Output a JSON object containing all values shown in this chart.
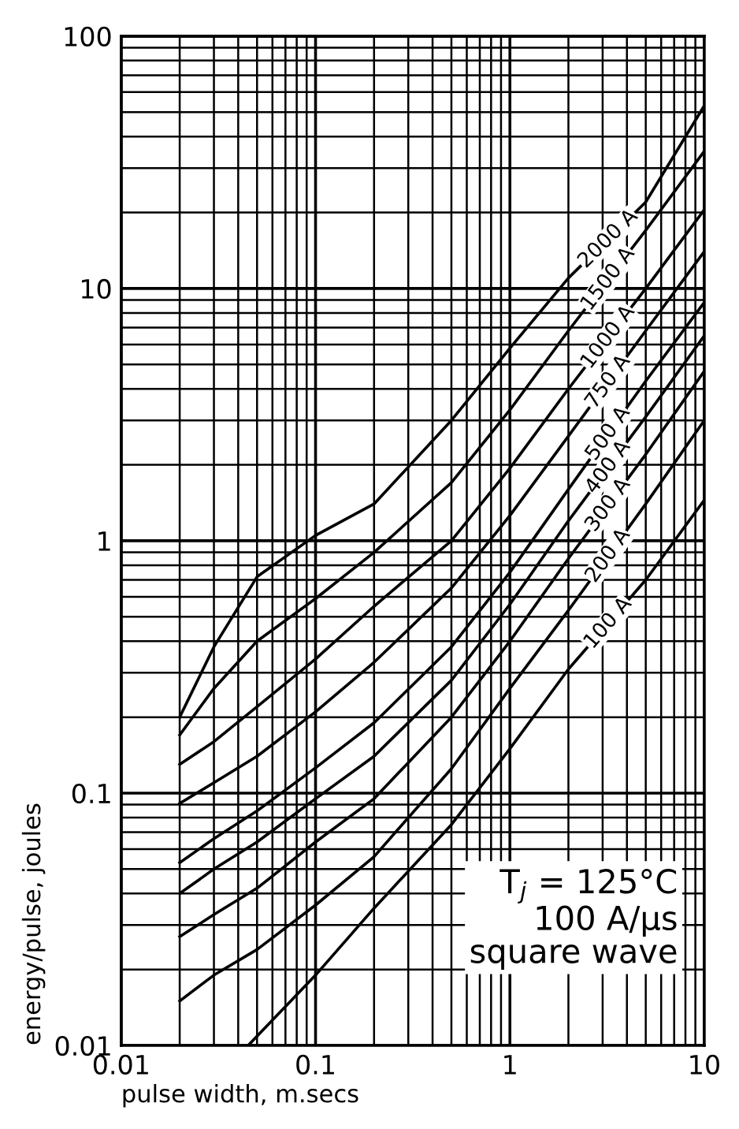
{
  "chart_data": {
    "type": "line",
    "xlabel": "pulse width, m.secs",
    "ylabel": "energy/pulse, joules",
    "log": "xy",
    "grid": true,
    "line_style": "solid",
    "marker": "none",
    "xlim": [
      0.01,
      10
    ],
    "ylim": [
      0.01,
      100
    ],
    "xticks": [
      0.01,
      0.1,
      1,
      10
    ],
    "yticks": [
      0.01,
      0.1,
      1,
      10,
      100
    ],
    "annotations": [
      "T$_{j}$ = 125°C\n100 A/µs\nsquare wave"
    ],
    "series": [
      {
        "name": "2000 A",
        "color": "#000000",
        "x": [
          0.02,
          0.03,
          0.05,
          0.1,
          0.2,
          0.5,
          1,
          2,
          5,
          10
        ],
        "values": [
          0.2,
          0.38,
          0.72,
          1.05,
          1.4,
          3.0,
          5.8,
          11,
          22,
          53
        ]
      },
      {
        "name": "1500 A",
        "color": "#000000",
        "x": [
          0.02,
          0.03,
          0.05,
          0.1,
          0.2,
          0.5,
          1,
          2,
          5,
          10
        ],
        "values": [
          0.17,
          0.26,
          0.4,
          0.59,
          0.9,
          1.7,
          3.3,
          6.8,
          17,
          35
        ]
      },
      {
        "name": "1000 A",
        "color": "#000000",
        "x": [
          0.02,
          0.03,
          0.05,
          0.1,
          0.2,
          0.5,
          1,
          2,
          5,
          10
        ],
        "values": [
          0.13,
          0.16,
          0.22,
          0.34,
          0.55,
          1.0,
          1.94,
          4,
          10,
          20.5
        ]
      },
      {
        "name": "750 A",
        "color": "#000000",
        "x": [
          0.02,
          0.03,
          0.05,
          0.1,
          0.2,
          0.5,
          1,
          2,
          5,
          10
        ],
        "values": [
          0.091,
          0.11,
          0.14,
          0.21,
          0.33,
          0.65,
          1.26,
          2.6,
          6.8,
          14
        ]
      },
      {
        "name": "500 A",
        "color": "#000000",
        "x": [
          0.02,
          0.03,
          0.05,
          0.1,
          0.2,
          0.5,
          1,
          2,
          5,
          10
        ],
        "values": [
          0.053,
          0.066,
          0.085,
          0.126,
          0.19,
          0.38,
          0.75,
          1.6,
          4.3,
          8.8
        ]
      },
      {
        "name": "400 A",
        "color": "#000000",
        "x": [
          0.02,
          0.03,
          0.05,
          0.1,
          0.2,
          0.5,
          1,
          2,
          5,
          10
        ],
        "values": [
          0.04,
          0.05,
          0.064,
          0.095,
          0.14,
          0.28,
          0.56,
          1.2,
          3.1,
          6.5
        ]
      },
      {
        "name": "300 A",
        "color": "#000000",
        "x": [
          0.02,
          0.03,
          0.05,
          0.1,
          0.2,
          0.5,
          1,
          2,
          5,
          10
        ],
        "values": [
          0.027,
          0.033,
          0.042,
          0.064,
          0.095,
          0.2,
          0.4,
          0.85,
          2.2,
          4.7
        ]
      },
      {
        "name": "200 A",
        "color": "#000000",
        "x": [
          0.02,
          0.03,
          0.05,
          0.1,
          0.2,
          0.5,
          1,
          2,
          5,
          10
        ],
        "values": [
          0.015,
          0.019,
          0.024,
          0.036,
          0.056,
          0.125,
          0.26,
          0.53,
          1.4,
          3.0
        ]
      },
      {
        "name": "100 A",
        "color": "#000000",
        "x": [
          0.045,
          0.1,
          0.2,
          0.5,
          1,
          2,
          5,
          10
        ],
        "values": [
          0.01,
          0.019,
          0.035,
          0.075,
          0.15,
          0.31,
          0.7,
          1.45
        ]
      }
    ]
  }
}
